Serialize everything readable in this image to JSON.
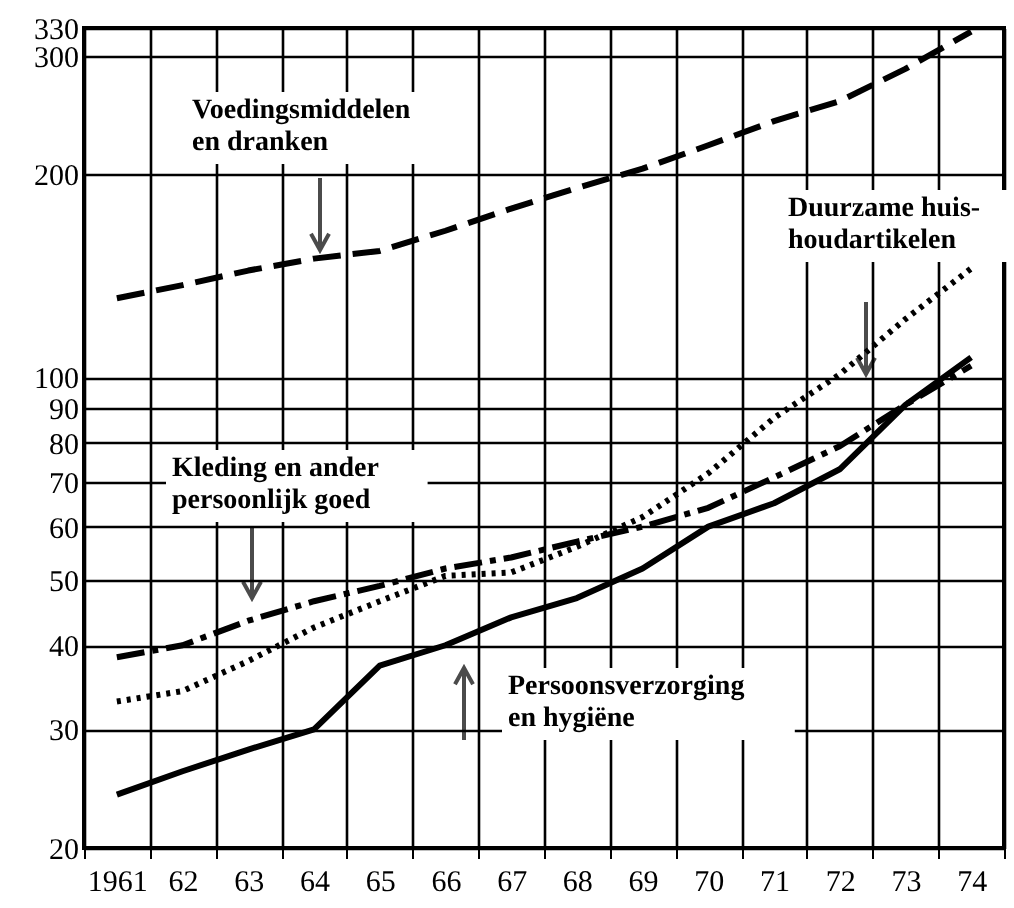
{
  "chart_data": {
    "type": "line",
    "log": "y",
    "grid": true,
    "categories": [
      "1961",
      "62",
      "63",
      "64",
      "65",
      "66",
      "67",
      "68",
      "69",
      "70",
      "71",
      "72",
      "73",
      "74"
    ],
    "ylim": [
      20,
      330
    ],
    "yticks": [
      20,
      30,
      40,
      50,
      60,
      70,
      80,
      90,
      100,
      200,
      300,
      330
    ],
    "series": [
      {
        "name": "Voedingsmiddelen\nen dranken",
        "color": "#000000",
        "line_style": "dashed",
        "values": [
          131,
          137,
          144,
          150,
          154,
          165,
          178,
          191,
          204,
          221,
          240,
          257,
          287,
          326
        ]
      },
      {
        "name": "Duurzame huis-\nhoudartikelen",
        "color": "#000000",
        "line_style": "dotted",
        "values": [
          33,
          34.2,
          37.9,
          42.5,
          46.5,
          50.7,
          51.3,
          56,
          62,
          72,
          87,
          101,
          122,
          145
        ]
      },
      {
        "name": "Kleding en ander\npersoonlijk goed",
        "color": "#000000",
        "line_style": "dashdot",
        "values": [
          38.4,
          40,
          43.5,
          46.5,
          49,
          52,
          54,
          57,
          60,
          64,
          71,
          79,
          91,
          104
        ]
      },
      {
        "name": "Persoonsverzorging\nen hygiëne",
        "color": "#000000",
        "line_style": "solid",
        "values": [
          24,
          26,
          28,
          30,
          37.3,
          40,
          44,
          47,
          52,
          60,
          65,
          73,
          91,
          107
        ]
      }
    ]
  }
}
